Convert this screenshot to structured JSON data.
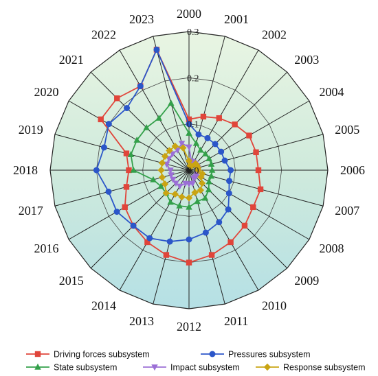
{
  "chart_data": {
    "type": "radar",
    "categories": [
      "2000",
      "2001",
      "2002",
      "2003",
      "2004",
      "2005",
      "2006",
      "2007",
      "2008",
      "2009",
      "2010",
      "2011",
      "2012",
      "2013",
      "2014",
      "2015",
      "2016",
      "2017",
      "2018",
      "2019",
      "2020",
      "2021",
      "2022",
      "2023"
    ],
    "radial_ticks": [
      "0.0",
      "0.1",
      "0.2",
      "0.3"
    ],
    "rlim": [
      0,
      0.3
    ],
    "grid": true,
    "legend_position": "bottom",
    "series": [
      {
        "name": "Driving forces subsystem",
        "color": "#e0453a",
        "marker": "square",
        "values": [
          0.11,
          0.12,
          0.13,
          0.14,
          0.15,
          0.15,
          0.15,
          0.16,
          0.16,
          0.17,
          0.18,
          0.19,
          0.2,
          0.19,
          0.18,
          0.17,
          0.16,
          0.14,
          0.13,
          0.14,
          0.22,
          0.22,
          0.21,
          0.27
        ]
      },
      {
        "name": "Pressures subsystem",
        "color": "#2b56c9",
        "marker": "circle",
        "values": [
          0.1,
          0.08,
          0.08,
          0.08,
          0.08,
          0.08,
          0.09,
          0.09,
          0.1,
          0.12,
          0.13,
          0.14,
          0.15,
          0.16,
          0.17,
          0.17,
          0.18,
          0.18,
          0.2,
          0.19,
          0.2,
          0.19,
          0.21,
          0.27
        ]
      },
      {
        "name": "State subsystem",
        "color": "#33a04a",
        "marker": "triangle-up",
        "values": [
          0.08,
          0.06,
          0.05,
          0.05,
          0.05,
          0.05,
          0.05,
          0.05,
          0.05,
          0.06,
          0.07,
          0.07,
          0.08,
          0.08,
          0.08,
          0.07,
          0.07,
          0.08,
          0.12,
          0.13,
          0.13,
          0.13,
          0.13,
          0.15
        ]
      },
      {
        "name": "Impact subsystem",
        "color": "#9b6fd6",
        "marker": "triangle-down",
        "values": [
          0.05,
          0.02,
          0.02,
          0.02,
          0.02,
          0.02,
          0.02,
          0.02,
          0.02,
          0.02,
          0.02,
          0.03,
          0.03,
          0.03,
          0.04,
          0.04,
          0.04,
          0.04,
          0.04,
          0.05,
          0.05,
          0.05,
          0.05,
          0.06
        ]
      },
      {
        "name": "Response subsystem",
        "color": "#c9a413",
        "marker": "diamond",
        "values": [
          0.02,
          0.01,
          0.01,
          0.02,
          0.02,
          0.02,
          0.02,
          0.03,
          0.03,
          0.04,
          0.05,
          0.05,
          0.06,
          0.06,
          0.06,
          0.07,
          0.06,
          0.06,
          0.06,
          0.06,
          0.06,
          0.06,
          0.06,
          0.05
        ]
      }
    ]
  }
}
